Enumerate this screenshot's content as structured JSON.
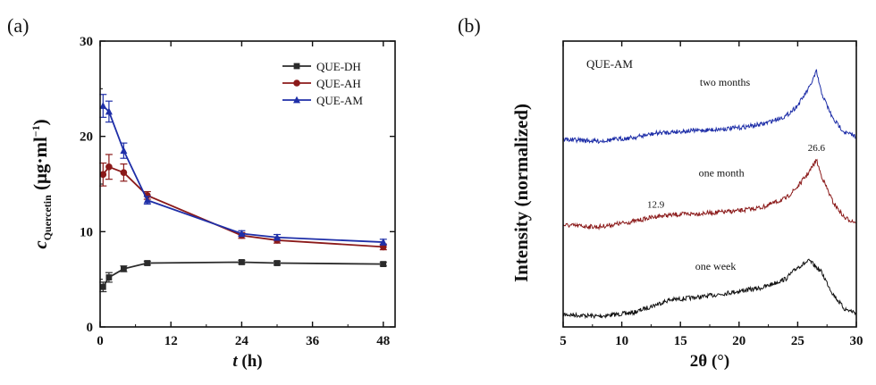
{
  "panel_a_label": "(a)",
  "panel_b_label": "(b)",
  "chart_data": [
    {
      "type": "line",
      "xlabel": "t (h)",
      "xlabel_parts": {
        "var": "t",
        "unit": " (h)"
      },
      "ylabel": "c Quercetin (μg·ml⁻¹)",
      "ylabel_parts": {
        "var": "c",
        "sub": "Quercetin",
        "unit": " (μg·ml",
        "sup": "−1",
        "close": ")"
      },
      "xlim": [
        0,
        50
      ],
      "ylim": [
        0,
        30
      ],
      "xticks": [
        0,
        12,
        24,
        36,
        48
      ],
      "yticks": [
        0,
        10,
        20,
        30
      ],
      "legend_position": "top-right",
      "series": [
        {
          "name": "QUE-DH",
          "color": "#2b2b2b",
          "marker": "square",
          "x": [
            0.5,
            1.5,
            4,
            8,
            24,
            30,
            48
          ],
          "y": [
            4.2,
            5.2,
            6.1,
            6.7,
            6.8,
            6.7,
            6.6
          ],
          "err": [
            0.5,
            0.5,
            0.3,
            0.2,
            0.2,
            0.2,
            0.2
          ]
        },
        {
          "name": "QUE-AH",
          "color": "#8b1a1a",
          "marker": "circle",
          "x": [
            0.5,
            1.5,
            4,
            8,
            24,
            30,
            48
          ],
          "y": [
            16.0,
            16.8,
            16.2,
            13.8,
            9.6,
            9.1,
            8.4
          ],
          "err": [
            1.2,
            1.3,
            0.9,
            0.4,
            0.3,
            0.3,
            0.3
          ]
        },
        {
          "name": "QUE-AM",
          "color": "#1f2fa8",
          "marker": "triangle",
          "x": [
            0.5,
            1.5,
            4,
            8,
            24,
            30,
            48
          ],
          "y": [
            23.2,
            22.6,
            18.5,
            13.3,
            9.8,
            9.4,
            8.9
          ],
          "err": [
            1.2,
            1.1,
            0.8,
            0.4,
            0.3,
            0.3,
            0.3
          ]
        }
      ]
    },
    {
      "type": "line",
      "title": "QUE-AM",
      "xlabel": "2θ (°)",
      "ylabel": "Intensity (normalized)",
      "xlim": [
        5,
        30
      ],
      "xticks": [
        5,
        10,
        15,
        20,
        25,
        30
      ],
      "yticks_shown": false,
      "series": [
        {
          "name": "one week",
          "color": "#111111",
          "baseline": 0.0,
          "x": [
            5,
            8,
            11,
            14,
            17,
            20,
            22,
            24,
            25,
            26,
            27,
            28,
            29,
            30
          ],
          "y": [
            0.02,
            0.0,
            0.04,
            0.18,
            0.22,
            0.28,
            0.32,
            0.42,
            0.55,
            0.62,
            0.5,
            0.25,
            0.08,
            0.04
          ]
        },
        {
          "name": "one month",
          "color": "#8b1a1a",
          "baseline": 1.0,
          "x": [
            5,
            8,
            11,
            13,
            15,
            18,
            20,
            22,
            24,
            25,
            26,
            26.6,
            27,
            28,
            29,
            30
          ],
          "y": [
            0.02,
            0.0,
            0.06,
            0.12,
            0.14,
            0.16,
            0.18,
            0.22,
            0.32,
            0.45,
            0.62,
            0.75,
            0.58,
            0.28,
            0.1,
            0.05
          ]
        },
        {
          "name": "two months",
          "color": "#1f2fa8",
          "baseline": 2.0,
          "x": [
            5,
            8,
            11,
            13,
            15,
            18,
            20,
            22,
            24,
            25,
            26,
            26.6,
            27,
            28,
            29,
            30
          ],
          "y": [
            0.02,
            0.0,
            0.04,
            0.09,
            0.11,
            0.13,
            0.15,
            0.19,
            0.28,
            0.4,
            0.6,
            0.78,
            0.55,
            0.25,
            0.1,
            0.05
          ]
        }
      ],
      "annotations": [
        {
          "text": "26.6",
          "x": 26.6,
          "series": "one month"
        },
        {
          "text": "12.9",
          "x": 12.9,
          "series": "one month"
        }
      ]
    }
  ]
}
